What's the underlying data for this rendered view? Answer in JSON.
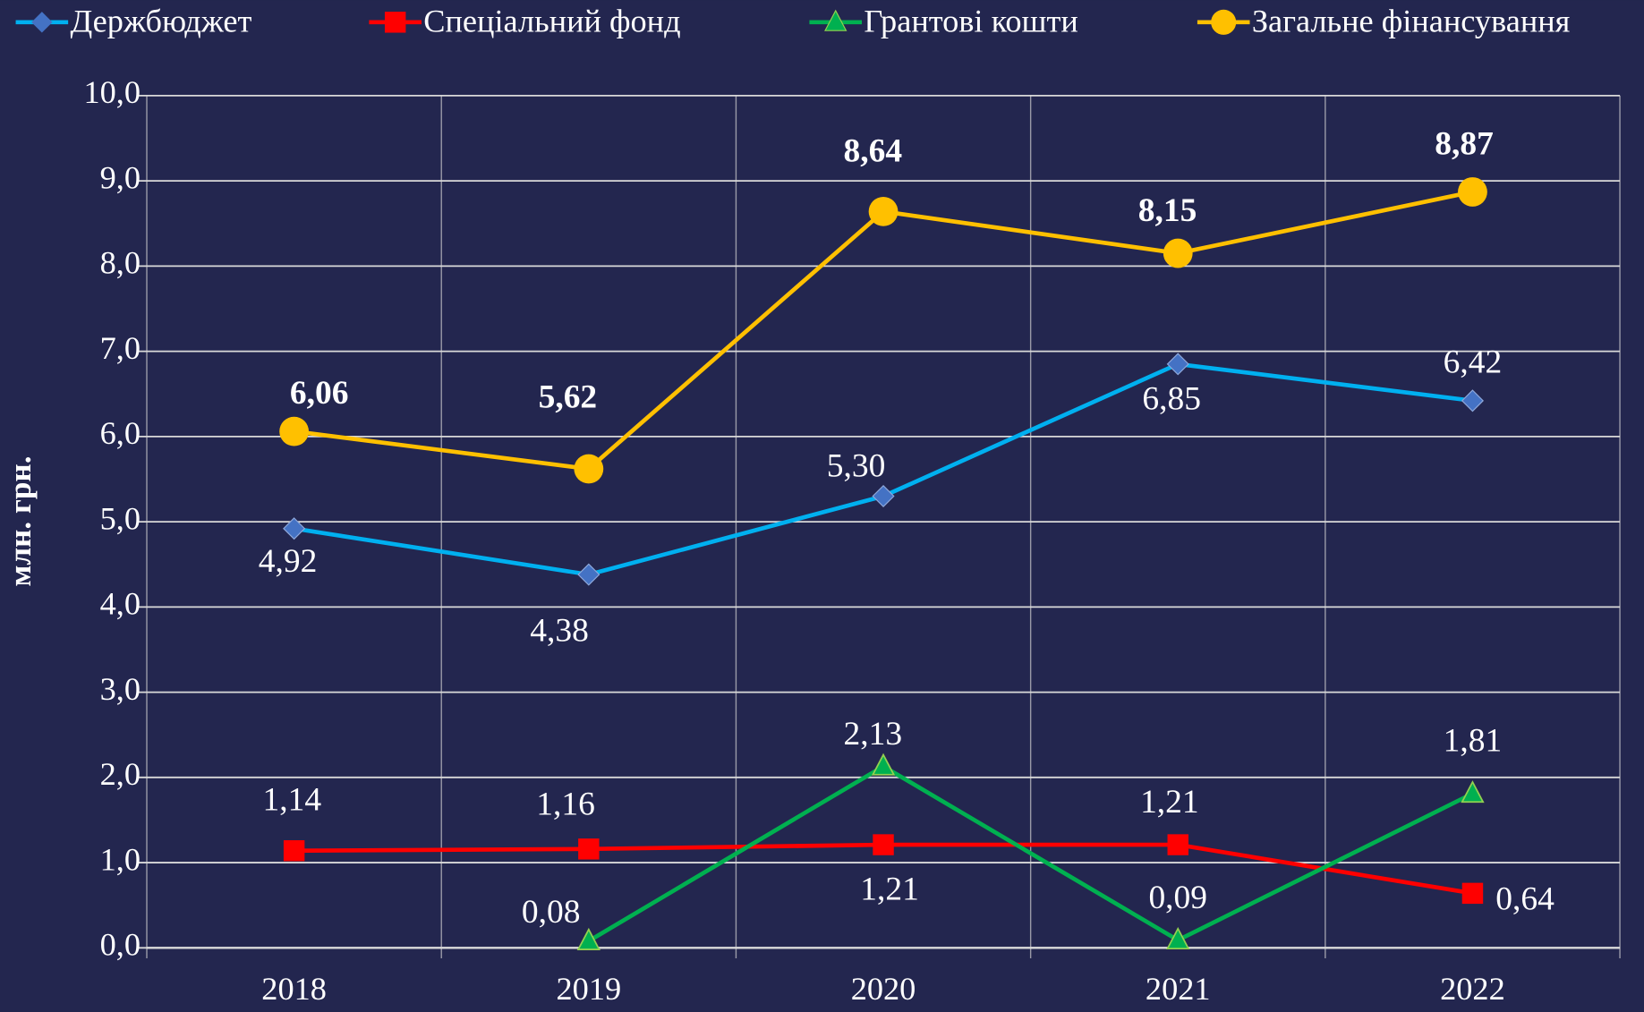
{
  "chart_data": {
    "type": "line",
    "y_label": "млн. грн.",
    "categories": [
      "2018",
      "2019",
      "2020",
      "2021",
      "2022"
    ],
    "series": [
      {
        "name": "Держбюджет",
        "color": "#00b0f0",
        "marker_color": "#4472c4",
        "marker": "diamond",
        "values": [
          4.92,
          4.38,
          5.3,
          6.85,
          6.42
        ],
        "value_labels": [
          "4,92",
          "4,38",
          "5,30",
          "6,85",
          "6,42"
        ]
      },
      {
        "name": "Спеціальний фонд",
        "color": "#ff0000",
        "marker_color": "#ff0000",
        "marker": "square",
        "values": [
          1.14,
          1.16,
          1.21,
          1.21,
          0.64
        ],
        "value_labels": [
          "1,14",
          "1,16",
          "1,21",
          "1,21",
          "0,64"
        ]
      },
      {
        "name": "Грантові кошти",
        "color": "#00b050",
        "marker_color": "#00b050",
        "marker": "triangle",
        "values": [
          null,
          0.08,
          2.13,
          0.09,
          1.81
        ],
        "value_labels": [
          null,
          "0,08",
          "2,13",
          "0,09",
          "1,81"
        ]
      },
      {
        "name": "Загальне  фінансування",
        "color": "#ffc000",
        "marker_color": "#ffc000",
        "marker": "circle",
        "bold_labels": true,
        "values": [
          6.06,
          5.62,
          8.64,
          8.15,
          8.87
        ],
        "value_labels": [
          "6,06",
          "5,62",
          "8,64",
          "8,15",
          "8,87"
        ]
      }
    ],
    "ylim": [
      0,
      10
    ],
    "yticks": [
      {
        "value": 0,
        "label": "0,0"
      },
      {
        "value": 1,
        "label": "1,0"
      },
      {
        "value": 2,
        "label": "2,0"
      },
      {
        "value": 3,
        "label": "3,0"
      },
      {
        "value": 4,
        "label": "4,0"
      },
      {
        "value": 5,
        "label": "5,0"
      },
      {
        "value": 6,
        "label": "6,0"
      },
      {
        "value": 7,
        "label": "7,0"
      },
      {
        "value": 8,
        "label": "8,0"
      },
      {
        "value": 9,
        "label": "9,0"
      },
      {
        "value": 10,
        "label": "10,0"
      }
    ],
    "grid": true,
    "legend": "top"
  }
}
